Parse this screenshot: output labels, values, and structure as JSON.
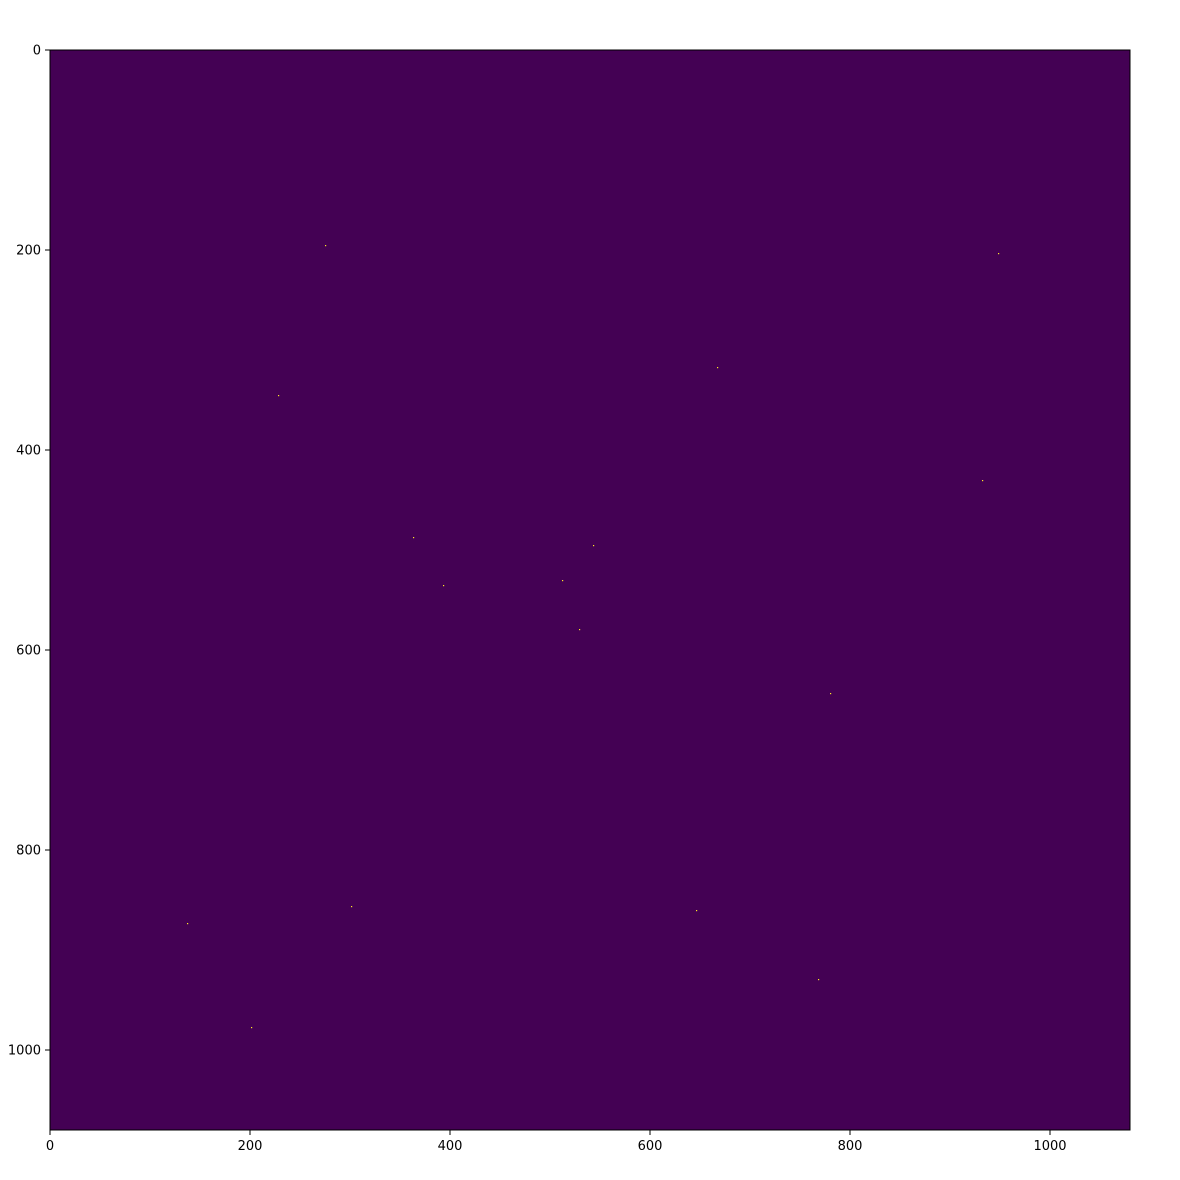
{
  "chart_data": {
    "type": "heatmap",
    "title": "",
    "xlabel": "",
    "ylabel": "",
    "xlim": [
      0,
      1080
    ],
    "ylim": [
      1080,
      0
    ],
    "y_axis_inverted": true,
    "grid": false,
    "legend": "none",
    "colormap": "viridis",
    "background_value_color": "#440154",
    "point_color": "#fde725",
    "x_ticks": [
      0,
      200,
      400,
      600,
      800,
      1000
    ],
    "x_tick_labels": [
      "0",
      "200",
      "400",
      "600",
      "800",
      "1000"
    ],
    "y_ticks": [
      0,
      200,
      400,
      600,
      800,
      1000
    ],
    "y_tick_labels": [
      "0",
      "200",
      "400",
      "600",
      "800",
      "1000"
    ],
    "bright_pixels": [
      {
        "x": 948,
        "y": 203
      },
      {
        "x": 275,
        "y": 195
      },
      {
        "x": 667,
        "y": 317
      },
      {
        "x": 228,
        "y": 345
      },
      {
        "x": 932,
        "y": 430
      },
      {
        "x": 543,
        "y": 495
      },
      {
        "x": 363,
        "y": 487
      },
      {
        "x": 512,
        "y": 530
      },
      {
        "x": 393,
        "y": 535
      },
      {
        "x": 529,
        "y": 579
      },
      {
        "x": 780,
        "y": 643
      },
      {
        "x": 301,
        "y": 856
      },
      {
        "x": 646,
        "y": 860
      },
      {
        "x": 137,
        "y": 873
      },
      {
        "x": 768,
        "y": 929
      },
      {
        "x": 201,
        "y": 977
      }
    ]
  }
}
